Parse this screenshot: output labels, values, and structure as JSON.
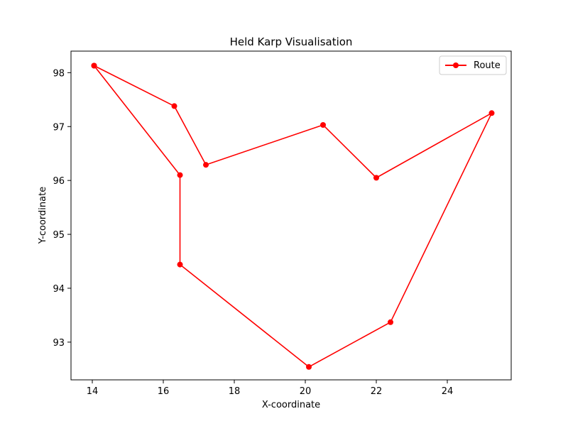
{
  "chart_data": {
    "type": "line",
    "title": "Held Karp Visualisation",
    "xlabel": "X-coordinate",
    "ylabel": "Y-coordinate",
    "xlim": [
      13.4,
      25.8
    ],
    "ylim": [
      92.3,
      98.4
    ],
    "xticks": [
      14,
      16,
      18,
      20,
      22,
      24
    ],
    "yticks": [
      93,
      94,
      95,
      96,
      97,
      98
    ],
    "grid": false,
    "legend_position": "top-right",
    "series": [
      {
        "name": "Route",
        "color": "#ff0000",
        "marker": "circle",
        "x": [
          14.05,
          16.31,
          17.2,
          20.5,
          22.0,
          25.25,
          22.4,
          20.1,
          16.47,
          16.47,
          14.05
        ],
        "y": [
          98.13,
          97.38,
          96.29,
          97.03,
          96.05,
          97.25,
          93.37,
          92.54,
          94.44,
          96.1,
          98.13
        ]
      }
    ]
  }
}
